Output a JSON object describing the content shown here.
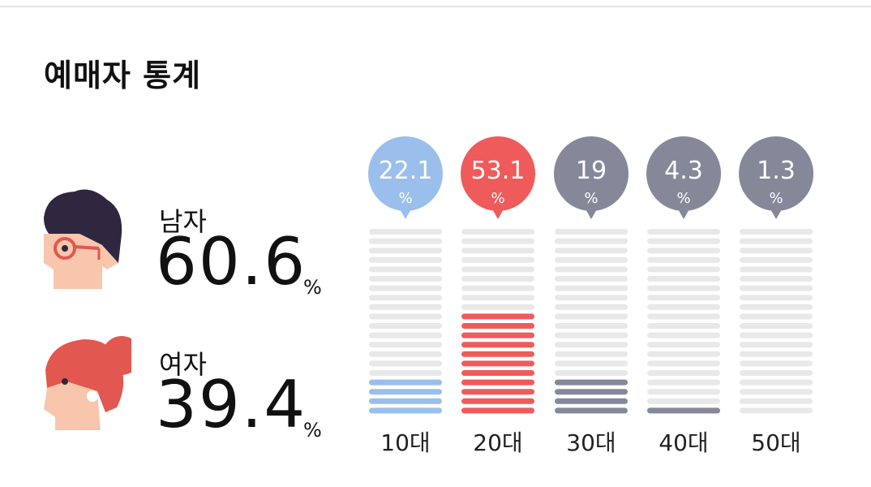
{
  "title": "예매자 통계",
  "gender": {
    "male": {
      "label": "남자",
      "value": "60.6",
      "unit": "%"
    },
    "female": {
      "label": "여자",
      "value": "39.4",
      "unit": "%"
    }
  },
  "colors": {
    "male_hair": "#2f2740",
    "female_hair": "#e2574f",
    "skin": "#f7c6ac",
    "glasses": "#e2574f",
    "bar_empty": "#e8e8e8"
  },
  "chart_data": {
    "type": "bar",
    "categories": [
      "10대",
      "20대",
      "30대",
      "40대",
      "50대"
    ],
    "values": [
      22.1,
      53.1,
      19,
      4.3,
      1.3
    ],
    "value_labels": [
      "22.1",
      "53.1",
      "19",
      "4.3",
      "1.3"
    ],
    "unit": "%",
    "colors": [
      "#9bbfec",
      "#ef5b5b",
      "#858899",
      "#858899",
      "#858899"
    ],
    "segments_total": 20,
    "filled_segments": [
      4,
      11,
      4,
      1,
      0
    ]
  }
}
